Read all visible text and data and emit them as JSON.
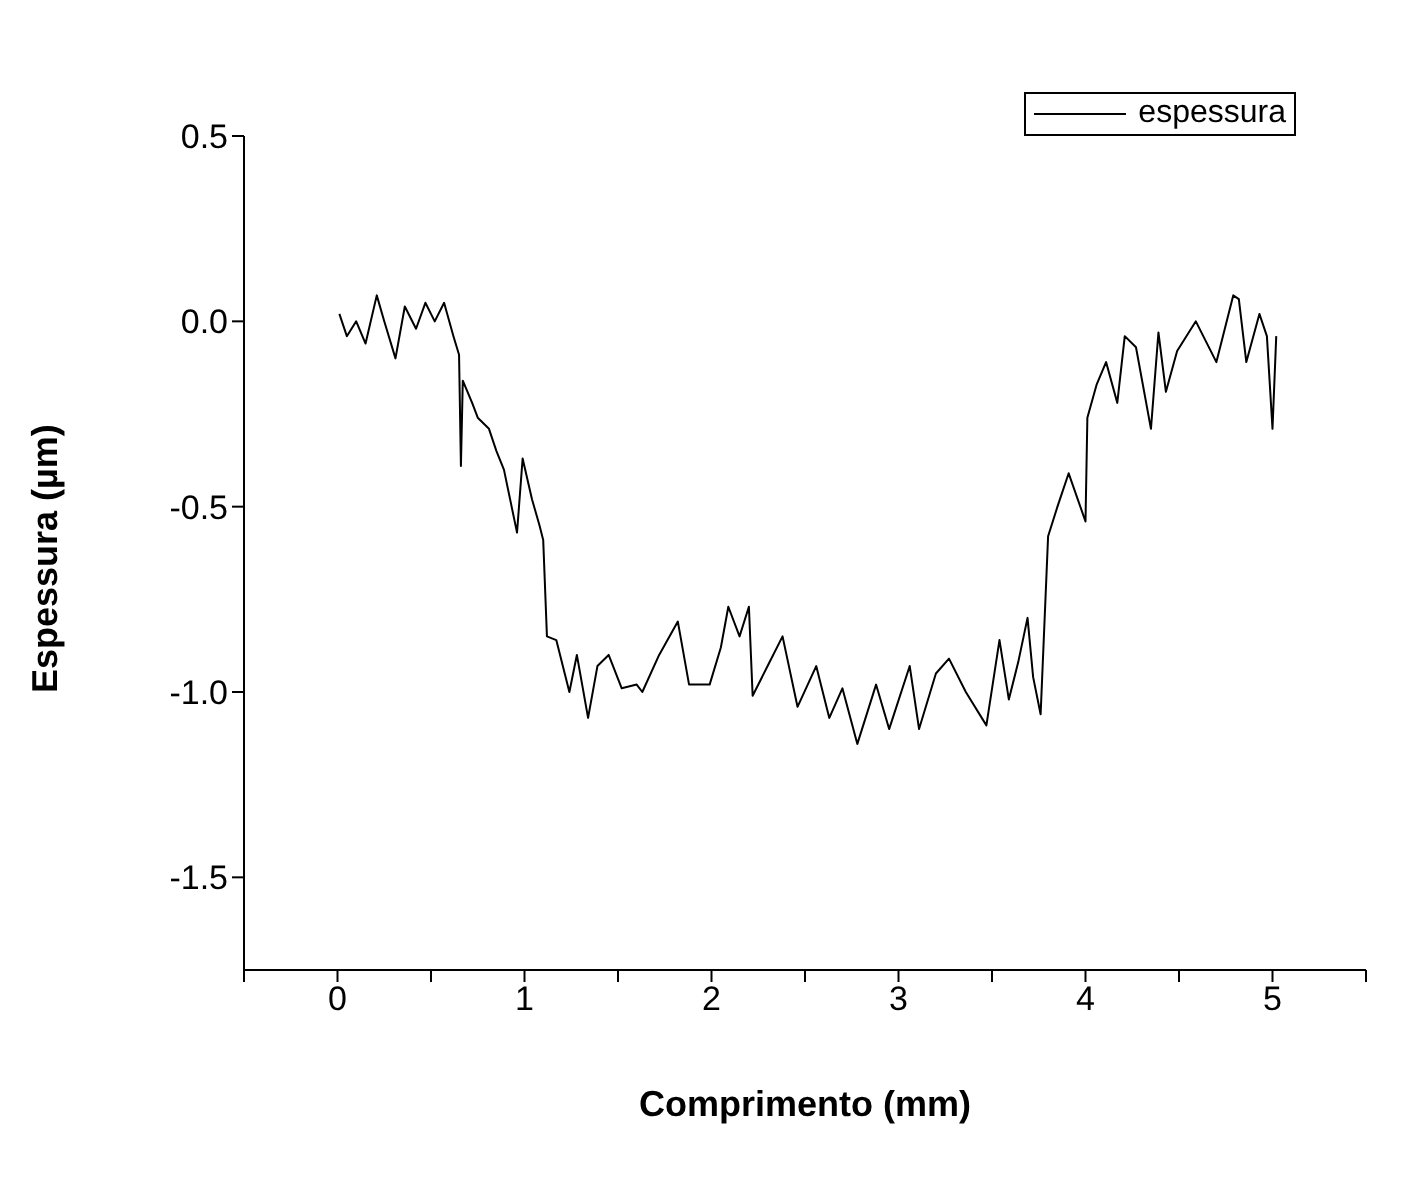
{
  "chart_data": {
    "type": "line",
    "xlabel": "Comprimento (mm)",
    "ylabel": "Espessura (µm)",
    "x": [
      0.01,
      0.05,
      0.1,
      0.15,
      0.21,
      0.25,
      0.31,
      0.36,
      0.42,
      0.47,
      0.52,
      0.57,
      0.62,
      0.65,
      0.66,
      0.67,
      0.72,
      0.75,
      0.81,
      0.85,
      0.89,
      0.96,
      0.99,
      1.04,
      1.08,
      1.1,
      1.12,
      1.17,
      1.24,
      1.28,
      1.34,
      1.39,
      1.45,
      1.52,
      1.6,
      1.63,
      1.72,
      1.82,
      1.88,
      1.99,
      2.05,
      2.09,
      2.15,
      2.2,
      2.22,
      2.3,
      2.38,
      2.46,
      2.56,
      2.63,
      2.7,
      2.78,
      2.88,
      2.95,
      3.06,
      3.11,
      3.2,
      3.27,
      3.36,
      3.47,
      3.54,
      3.59,
      3.64,
      3.69,
      3.72,
      3.76,
      3.8,
      3.85,
      3.91,
      4.0,
      4.01,
      4.06,
      4.11,
      4.17,
      4.21,
      4.27,
      4.35,
      4.39,
      4.43,
      4.49,
      4.59,
      4.7,
      4.79,
      4.82,
      4.86,
      4.93,
      4.97,
      5.0,
      5.02
    ],
    "series": [
      {
        "name": "espessura",
        "color": "#000000",
        "values": [
          0.02,
          -0.04,
          0.0,
          -0.06,
          0.07,
          0.0,
          -0.1,
          0.04,
          -0.02,
          0.05,
          0.0,
          0.05,
          -0.04,
          -0.09,
          -0.39,
          -0.16,
          -0.22,
          -0.26,
          -0.29,
          -0.35,
          -0.4,
          -0.57,
          -0.37,
          -0.48,
          -0.55,
          -0.59,
          -0.85,
          -0.86,
          -1.0,
          -0.9,
          -1.07,
          -0.93,
          -0.9,
          -0.99,
          -0.98,
          -1.0,
          -0.9,
          -0.81,
          -0.98,
          -0.98,
          -0.88,
          -0.77,
          -0.85,
          -0.77,
          -1.01,
          -0.93,
          -0.85,
          -1.04,
          -0.93,
          -1.07,
          -0.99,
          -1.14,
          -0.98,
          -1.1,
          -0.93,
          -1.1,
          -0.95,
          -0.91,
          -1.0,
          -1.09,
          -0.86,
          -1.02,
          -0.92,
          -0.8,
          -0.96,
          -1.06,
          -0.58,
          -0.5,
          -0.41,
          -0.54,
          -0.26,
          -0.17,
          -0.11,
          -0.22,
          -0.04,
          -0.07,
          -0.29,
          -0.03,
          -0.19,
          -0.08,
          0.0,
          -0.11,
          0.07,
          0.06,
          -0.11,
          0.02,
          -0.04,
          -0.29,
          -0.04
        ]
      }
    ],
    "xlim": [
      -0.5,
      5.5
    ],
    "xticks": [
      {
        "value": -0.5,
        "label": null
      },
      0,
      {
        "value": 0.5,
        "label": null
      },
      1,
      {
        "value": 1.5,
        "label": null
      },
      2,
      {
        "value": 2.5,
        "label": null
      },
      3,
      {
        "value": 3.5,
        "label": null
      },
      4,
      {
        "value": 4.5,
        "label": null
      },
      5,
      {
        "value": 5.5,
        "label": null
      }
    ],
    "ylim": [
      -1.75,
      0.5
    ],
    "yticks": [
      {
        "value": -1.5,
        "label": "-1.5"
      },
      {
        "value": -1,
        "label": "-1.0"
      },
      {
        "value": -0.5,
        "label": "-0.5"
      },
      {
        "value": 0,
        "label": "0.0"
      },
      {
        "value": 0.5,
        "label": "0.5"
      }
    ],
    "legend": "top right",
    "marker": "none",
    "line_style": "solid",
    "grid": false
  }
}
